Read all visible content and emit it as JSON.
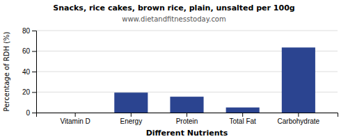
{
  "chart_data": {
    "type": "bar",
    "title": "Snacks, rice cakes, brown rice, plain, unsalted per 100g",
    "subtitle": "www.dietandfitnesstoday.com",
    "xlabel": "Different Nutrients",
    "ylabel": "Percentage of RDH (%)",
    "categories": [
      "Vitamin D",
      "Energy",
      "Protein",
      "Total Fat",
      "Carbohydrate"
    ],
    "values": [
      0,
      19.5,
      15.5,
      5.0,
      63.5
    ],
    "color": "#2b4490",
    "ylim": [
      0,
      80
    ],
    "yticks": [
      0,
      20,
      40,
      60,
      80
    ],
    "grid": true
  }
}
